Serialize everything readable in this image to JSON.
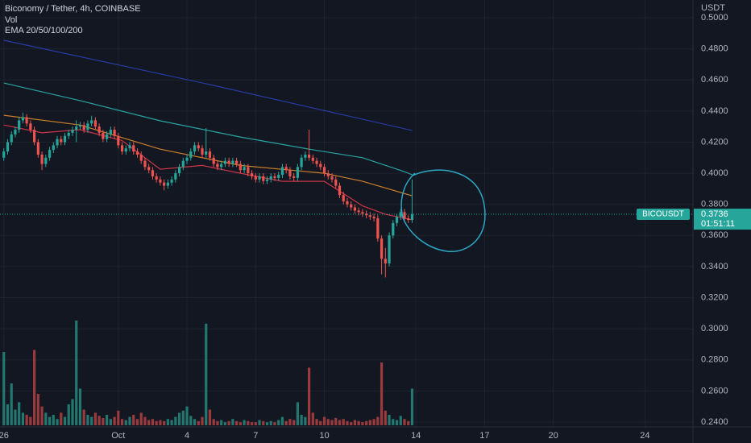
{
  "chart_data": {
    "type": "candlestick",
    "title": "Biconomy / Tether, 4h, COINBASE",
    "volume_label": "Vol",
    "indicator_label": "EMA 20/50/100/200",
    "y_axis_label": "USDT",
    "symbol_label": "BICOUSDT",
    "last_price": 0.3736,
    "countdown": "01:51:11",
    "up_color": "#26a69a",
    "down_color": "#ef5350",
    "volume_up_color": "#22776f",
    "volume_down_color": "#9a3a3d",
    "grid": true,
    "ylim": [
      0.2369,
      0.5114
    ],
    "yticks": [
      {
        "value": 0.5,
        "label": "0.5000"
      },
      {
        "value": 0.48,
        "label": "0.4800"
      },
      {
        "value": 0.46,
        "label": "0.4600"
      },
      {
        "value": 0.44,
        "label": "0.4400"
      },
      {
        "value": 0.42,
        "label": "0.4200"
      },
      {
        "value": 0.4,
        "label": "0.4000"
      },
      {
        "value": 0.38,
        "label": "0.3800"
      },
      {
        "value": 0.36,
        "label": "0.3600"
      },
      {
        "value": 0.34,
        "label": "0.3400"
      },
      {
        "value": 0.32,
        "label": "0.3200"
      },
      {
        "value": 0.3,
        "label": "0.3000"
      },
      {
        "value": 0.28,
        "label": "0.2800"
      },
      {
        "value": 0.26,
        "label": "0.2600"
      },
      {
        "value": 0.24,
        "label": "0.2400"
      }
    ],
    "xlim": [
      -1,
      180.6
    ],
    "xticks": [
      {
        "value": 0,
        "label": "26"
      },
      {
        "value": 30,
        "label": "Oct"
      },
      {
        "value": 48,
        "label": "4"
      },
      {
        "value": 66,
        "label": "7"
      },
      {
        "value": 84,
        "label": "10"
      },
      {
        "value": 108,
        "label": "14"
      },
      {
        "value": 126,
        "label": "17"
      },
      {
        "value": 144,
        "label": "20"
      },
      {
        "value": 168,
        "label": "24"
      }
    ],
    "ohlc": [
      [
        0.41,
        0.416,
        0.408,
        0.414
      ],
      [
        0.414,
        0.422,
        0.412,
        0.42
      ],
      [
        0.42,
        0.427,
        0.418,
        0.425
      ],
      [
        0.425,
        0.43,
        0.423,
        0.428
      ],
      [
        0.428,
        0.436,
        0.426,
        0.434
      ],
      [
        0.434,
        0.439,
        0.432,
        0.436
      ],
      [
        0.436,
        0.438,
        0.43,
        0.432
      ],
      [
        0.432,
        0.434,
        0.426,
        0.428
      ],
      [
        0.428,
        0.43,
        0.418,
        0.42
      ],
      [
        0.42,
        0.422,
        0.41,
        0.412
      ],
      [
        0.412,
        0.414,
        0.402,
        0.406
      ],
      [
        0.406,
        0.412,
        0.404,
        0.41
      ],
      [
        0.41,
        0.417,
        0.408,
        0.415
      ],
      [
        0.415,
        0.42,
        0.413,
        0.418
      ],
      [
        0.418,
        0.424,
        0.416,
        0.422
      ],
      [
        0.422,
        0.424,
        0.418,
        0.42
      ],
      [
        0.42,
        0.426,
        0.418,
        0.424
      ],
      [
        0.424,
        0.428,
        0.422,
        0.426
      ],
      [
        0.426,
        0.43,
        0.424,
        0.428
      ],
      [
        0.428,
        0.434,
        0.42,
        0.43
      ],
      [
        0.43,
        0.433,
        0.428,
        0.431
      ],
      [
        0.431,
        0.433,
        0.426,
        0.428
      ],
      [
        0.428,
        0.434,
        0.426,
        0.432
      ],
      [
        0.432,
        0.437,
        0.43,
        0.434
      ],
      [
        0.434,
        0.436,
        0.428,
        0.43
      ],
      [
        0.43,
        0.432,
        0.424,
        0.426
      ],
      [
        0.426,
        0.428,
        0.42,
        0.422
      ],
      [
        0.422,
        0.427,
        0.42,
        0.425
      ],
      [
        0.425,
        0.43,
        0.423,
        0.428
      ],
      [
        0.428,
        0.43,
        0.422,
        0.424
      ],
      [
        0.424,
        0.426,
        0.416,
        0.418
      ],
      [
        0.418,
        0.42,
        0.412,
        0.414
      ],
      [
        0.414,
        0.418,
        0.412,
        0.416
      ],
      [
        0.416,
        0.42,
        0.414,
        0.418
      ],
      [
        0.418,
        0.42,
        0.412,
        0.414
      ],
      [
        0.414,
        0.416,
        0.41,
        0.412
      ],
      [
        0.412,
        0.414,
        0.406,
        0.408
      ],
      [
        0.408,
        0.41,
        0.402,
        0.404
      ],
      [
        0.404,
        0.406,
        0.4,
        0.402
      ],
      [
        0.402,
        0.404,
        0.396,
        0.398
      ],
      [
        0.398,
        0.4,
        0.394,
        0.396
      ],
      [
        0.396,
        0.398,
        0.392,
        0.394
      ],
      [
        0.394,
        0.396,
        0.389,
        0.392
      ],
      [
        0.392,
        0.396,
        0.39,
        0.394
      ],
      [
        0.394,
        0.398,
        0.392,
        0.396
      ],
      [
        0.396,
        0.402,
        0.394,
        0.4
      ],
      [
        0.4,
        0.406,
        0.398,
        0.404
      ],
      [
        0.404,
        0.41,
        0.402,
        0.408
      ],
      [
        0.408,
        0.412,
        0.406,
        0.41
      ],
      [
        0.41,
        0.416,
        0.408,
        0.414
      ],
      [
        0.414,
        0.42,
        0.412,
        0.418
      ],
      [
        0.418,
        0.42,
        0.414,
        0.416
      ],
      [
        0.416,
        0.418,
        0.41,
        0.412
      ],
      [
        0.412,
        0.429,
        0.41,
        0.414
      ],
      [
        0.414,
        0.416,
        0.408,
        0.41
      ],
      [
        0.41,
        0.412,
        0.404,
        0.406
      ],
      [
        0.406,
        0.408,
        0.402,
        0.404
      ],
      [
        0.404,
        0.408,
        0.402,
        0.406
      ],
      [
        0.406,
        0.41,
        0.404,
        0.408
      ],
      [
        0.408,
        0.41,
        0.404,
        0.406
      ],
      [
        0.406,
        0.41,
        0.404,
        0.408
      ],
      [
        0.408,
        0.41,
        0.404,
        0.406
      ],
      [
        0.406,
        0.408,
        0.4,
        0.402
      ],
      [
        0.402,
        0.406,
        0.4,
        0.404
      ],
      [
        0.404,
        0.406,
        0.398,
        0.4
      ],
      [
        0.4,
        0.402,
        0.396,
        0.398
      ],
      [
        0.398,
        0.4,
        0.394,
        0.396
      ],
      [
        0.396,
        0.4,
        0.394,
        0.398
      ],
      [
        0.398,
        0.4,
        0.393,
        0.395
      ],
      [
        0.395,
        0.398,
        0.393,
        0.396
      ],
      [
        0.396,
        0.4,
        0.394,
        0.398
      ],
      [
        0.398,
        0.4,
        0.395,
        0.397
      ],
      [
        0.397,
        0.401,
        0.395,
        0.399
      ],
      [
        0.399,
        0.406,
        0.397,
        0.404
      ],
      [
        0.404,
        0.406,
        0.4,
        0.402
      ],
      [
        0.402,
        0.404,
        0.396,
        0.398
      ],
      [
        0.398,
        0.4,
        0.395,
        0.397
      ],
      [
        0.397,
        0.406,
        0.395,
        0.404
      ],
      [
        0.404,
        0.412,
        0.402,
        0.41
      ],
      [
        0.41,
        0.414,
        0.408,
        0.412
      ],
      [
        0.412,
        0.428,
        0.408,
        0.41
      ],
      [
        0.41,
        0.412,
        0.406,
        0.408
      ],
      [
        0.408,
        0.41,
        0.404,
        0.406
      ],
      [
        0.406,
        0.408,
        0.402,
        0.404
      ],
      [
        0.404,
        0.406,
        0.398,
        0.4
      ],
      [
        0.4,
        0.402,
        0.396,
        0.398
      ],
      [
        0.398,
        0.4,
        0.394,
        0.396
      ],
      [
        0.396,
        0.398,
        0.39,
        0.392
      ],
      [
        0.392,
        0.394,
        0.384,
        0.386
      ],
      [
        0.386,
        0.388,
        0.38,
        0.382
      ],
      [
        0.382,
        0.384,
        0.378,
        0.38
      ],
      [
        0.38,
        0.382,
        0.376,
        0.378
      ],
      [
        0.378,
        0.38,
        0.374,
        0.376
      ],
      [
        0.376,
        0.378,
        0.373,
        0.375
      ],
      [
        0.375,
        0.377,
        0.372,
        0.374
      ],
      [
        0.374,
        0.376,
        0.371,
        0.373
      ],
      [
        0.373,
        0.375,
        0.37,
        0.372
      ],
      [
        0.372,
        0.374,
        0.369,
        0.371
      ],
      [
        0.371,
        0.373,
        0.356,
        0.358
      ],
      [
        0.358,
        0.36,
        0.335,
        0.345
      ],
      [
        0.345,
        0.352,
        0.333,
        0.342
      ],
      [
        0.342,
        0.362,
        0.34,
        0.36
      ],
      [
        0.36,
        0.37,
        0.358,
        0.368
      ],
      [
        0.368,
        0.374,
        0.366,
        0.372
      ],
      [
        0.372,
        0.377,
        0.37,
        0.375
      ],
      [
        0.375,
        0.377,
        0.369,
        0.371
      ],
      [
        0.371,
        0.373,
        0.368,
        0.37
      ],
      [
        0.37,
        0.396,
        0.368,
        0.3736
      ]
    ],
    "volume_ylim": [
      0,
      100
    ],
    "volume": [
      70,
      20,
      40,
      15,
      22,
      12,
      10,
      8,
      72,
      30,
      18,
      12,
      8,
      10,
      6,
      12,
      8,
      20,
      25,
      100,
      35,
      15,
      10,
      8,
      12,
      9,
      7,
      10,
      6,
      8,
      14,
      6,
      5,
      8,
      10,
      6,
      12,
      8,
      5,
      6,
      4,
      5,
      4,
      6,
      5,
      8,
      12,
      14,
      18,
      9,
      6,
      4,
      8,
      97,
      15,
      6,
      4,
      5,
      3,
      4,
      6,
      4,
      3,
      5,
      4,
      3,
      3,
      5,
      4,
      3,
      4,
      3,
      5,
      8,
      4,
      6,
      5,
      22,
      10,
      8,
      55,
      12,
      6,
      4,
      8,
      6,
      5,
      7,
      5,
      6,
      4,
      3,
      5,
      4,
      3,
      4,
      5,
      6,
      8,
      60,
      14,
      10,
      6,
      5,
      9,
      6,
      4,
      35
    ],
    "ema": [
      {
        "color": "#e0384a",
        "x": [
          0,
          10,
          20,
          31,
          41,
          52,
          62,
          73,
          84,
          94,
          100,
          107
        ],
        "values": [
          0.431,
          0.426,
          0.428,
          0.421,
          0.4026,
          0.405,
          0.4,
          0.3948,
          0.3948,
          0.379,
          0.3736,
          0.37
        ]
      },
      {
        "color": "#e08a2c",
        "x": [
          0,
          20,
          41,
          62,
          84,
          94,
          107
        ],
        "values": [
          0.4373,
          0.431,
          0.4155,
          0.405,
          0.4,
          0.3948,
          0.3855
        ]
      },
      {
        "color": "#2bb3b0",
        "x": [
          0,
          20,
          41,
          62,
          80,
          94,
          105,
          107
        ],
        "values": [
          0.458,
          0.4467,
          0.4337,
          0.4233,
          0.4155,
          0.41,
          0.401,
          0.399
        ]
      },
      {
        "color": "#2a3fb0",
        "x": [
          0,
          54,
          107
        ],
        "values": [
          0.4855,
          0.457,
          0.4275
        ]
      }
    ]
  }
}
